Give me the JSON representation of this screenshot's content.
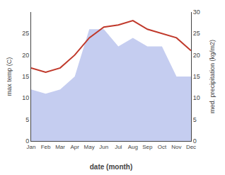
{
  "chart_data": {
    "type": "line",
    "categories": [
      "Jan",
      "Feb",
      "Mar",
      "Apr",
      "May",
      "Jun",
      "Jul",
      "Aug",
      "Sep",
      "Oct",
      "Nov",
      "Dec"
    ],
    "series": [
      {
        "type": "area",
        "axis": "y2",
        "color": "#c5cdf0",
        "values": [
          12,
          11,
          12,
          15,
          26,
          26,
          22,
          24,
          22,
          22,
          15,
          15
        ]
      },
      {
        "type": "line",
        "color": "#c0392b",
        "values": [
          17,
          16,
          17,
          20,
          24,
          26.5,
          27,
          28,
          26,
          25,
          24,
          21
        ]
      }
    ],
    "xlabel": "date (month)",
    "ylabel": "max temp (C)",
    "y2label": "med. precipitation (kg/m2)",
    "ylim": [
      0,
      30
    ],
    "yticks": [
      0,
      5,
      10,
      15,
      20,
      25
    ],
    "y2lim": [
      0,
      30
    ],
    "y2ticks": [
      0,
      5,
      10,
      15,
      20,
      25,
      30
    ],
    "grid": false
  }
}
